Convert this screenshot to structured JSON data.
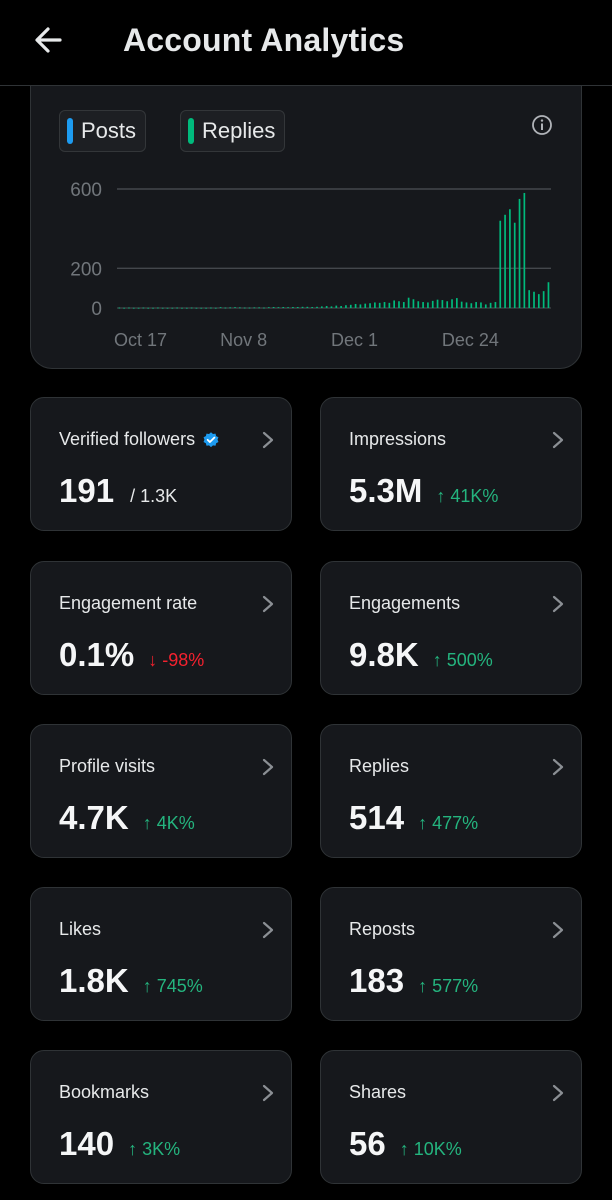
{
  "header": {
    "title": "Account Analytics",
    "back_icon": "arrow-left-icon"
  },
  "chart": {
    "legend": [
      {
        "label": "Posts",
        "color": "#1d9bf0"
      },
      {
        "label": "Replies",
        "color": "#00ba7c"
      }
    ],
    "info_icon": "info-circle-icon"
  },
  "chart_data": {
    "type": "bar",
    "title": "",
    "xlabel": "",
    "ylabel": "",
    "ylim": [
      0,
      600
    ],
    "yticks": [
      "600",
      "200",
      "0"
    ],
    "ytick_values": [
      600,
      200,
      0
    ],
    "xticks": [
      {
        "label": "Oct 17",
        "index": 0
      },
      {
        "label": "Nov 8",
        "index": 22
      },
      {
        "label": "Dec 1",
        "index": 45
      },
      {
        "label": "Dec 24",
        "index": 68
      }
    ],
    "series": [
      {
        "name": "Replies",
        "color": "#00ba7c",
        "values": [
          2,
          1,
          2,
          1,
          1,
          2,
          1,
          1,
          2,
          1,
          1,
          1,
          2,
          1,
          1,
          2,
          1,
          1,
          1,
          2,
          1,
          4,
          2,
          3,
          4,
          3,
          2,
          2,
          3,
          3,
          2,
          4,
          5,
          4,
          5,
          4,
          5,
          5,
          6,
          6,
          5,
          6,
          8,
          10,
          8,
          12,
          10,
          14,
          16,
          20,
          18,
          22,
          24,
          28,
          26,
          30,
          26,
          38,
          34,
          30,
          52,
          44,
          34,
          30,
          28,
          36,
          42,
          40,
          34,
          44,
          50,
          32,
          28,
          24,
          30,
          28,
          18,
          26,
          30,
          440,
          470,
          498,
          430,
          550,
          580,
          90,
          82,
          70,
          85,
          130
        ]
      }
    ]
  },
  "stats": [
    {
      "label": "Verified followers",
      "value": "191",
      "sub": "/ 1.3K",
      "change": "",
      "direction": "",
      "verified": true
    },
    {
      "label": "Impressions",
      "value": "5.3M",
      "sub": "",
      "change": "↑ 41K%",
      "direction": "up",
      "verified": false
    },
    {
      "label": "Engagement rate",
      "value": "0.1%",
      "sub": "",
      "change": "↓ -98%",
      "direction": "down",
      "verified": false
    },
    {
      "label": "Engagements",
      "value": "9.8K",
      "sub": "",
      "change": "↑ 500%",
      "direction": "up",
      "verified": false
    },
    {
      "label": "Profile visits",
      "value": "4.7K",
      "sub": "",
      "change": "↑ 4K%",
      "direction": "up",
      "verified": false
    },
    {
      "label": "Replies",
      "value": "514",
      "sub": "",
      "change": "↑ 477%",
      "direction": "up",
      "verified": false
    },
    {
      "label": "Likes",
      "value": "1.8K",
      "sub": "",
      "change": "↑ 745%",
      "direction": "up",
      "verified": false
    },
    {
      "label": "Reposts",
      "value": "183",
      "sub": "",
      "change": "↑ 577%",
      "direction": "up",
      "verified": false
    },
    {
      "label": "Bookmarks",
      "value": "140",
      "sub": "",
      "change": "↑ 3K%",
      "direction": "up",
      "verified": false
    },
    {
      "label": "Shares",
      "value": "56",
      "sub": "",
      "change": "↑ 10K%",
      "direction": "up",
      "verified": false
    }
  ],
  "icons": {
    "chevron": "chevron-right-icon",
    "verified": "verified-badge-icon"
  }
}
